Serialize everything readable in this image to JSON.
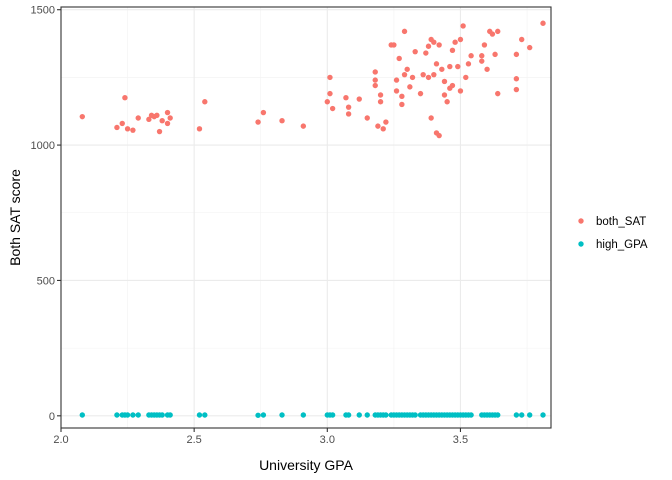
{
  "chart_data": {
    "type": "scatter",
    "title": "",
    "xlabel": "University GPA",
    "ylabel": "Both SAT score",
    "xlim": [
      2.0,
      3.84
    ],
    "ylim": [
      -45,
      1510
    ],
    "x_ticks": [
      2.0,
      2.5,
      3.0,
      3.5
    ],
    "x_tick_labels": [
      "2.0",
      "2.5",
      "3.0",
      "3.5"
    ],
    "y_ticks": [
      0,
      500,
      1000,
      1500
    ],
    "y_tick_labels": [
      "0",
      "500",
      "1000",
      "1500"
    ],
    "grid": true,
    "legend_position": "right",
    "series": [
      {
        "name": "both_SAT",
        "color": "#F8766D",
        "points": [
          [
            2.08,
            1105
          ],
          [
            2.21,
            1065
          ],
          [
            2.23,
            1080
          ],
          [
            2.24,
            1175
          ],
          [
            2.25,
            1060
          ],
          [
            2.27,
            1055
          ],
          [
            2.29,
            1100
          ],
          [
            2.33,
            1095
          ],
          [
            2.34,
            1110
          ],
          [
            2.35,
            1105
          ],
          [
            2.36,
            1110
          ],
          [
            2.37,
            1050
          ],
          [
            2.38,
            1090
          ],
          [
            2.4,
            1080
          ],
          [
            2.4,
            1120
          ],
          [
            2.41,
            1100
          ],
          [
            2.52,
            1060
          ],
          [
            2.54,
            1160
          ],
          [
            2.74,
            1085
          ],
          [
            2.76,
            1120
          ],
          [
            2.83,
            1090
          ],
          [
            2.91,
            1070
          ],
          [
            3.0,
            1160
          ],
          [
            3.01,
            1250
          ],
          [
            3.01,
            1190
          ],
          [
            3.02,
            1135
          ],
          [
            3.07,
            1175
          ],
          [
            3.08,
            1115
          ],
          [
            3.08,
            1140
          ],
          [
            3.12,
            1170
          ],
          [
            3.15,
            1100
          ],
          [
            3.18,
            1220
          ],
          [
            3.18,
            1270
          ],
          [
            3.18,
            1240
          ],
          [
            3.19,
            1070
          ],
          [
            3.2,
            1185
          ],
          [
            3.2,
            1160
          ],
          [
            3.21,
            1060
          ],
          [
            3.22,
            1085
          ],
          [
            3.24,
            1370
          ],
          [
            3.25,
            1370
          ],
          [
            3.26,
            1200
          ],
          [
            3.26,
            1240
          ],
          [
            3.27,
            1320
          ],
          [
            3.28,
            1150
          ],
          [
            3.28,
            1180
          ],
          [
            3.29,
            1420
          ],
          [
            3.29,
            1260
          ],
          [
            3.3,
            1280
          ],
          [
            3.31,
            1215
          ],
          [
            3.32,
            1250
          ],
          [
            3.33,
            1345
          ],
          [
            3.35,
            1190
          ],
          [
            3.36,
            1260
          ],
          [
            3.37,
            1340
          ],
          [
            3.38,
            1365
          ],
          [
            3.38,
            1250
          ],
          [
            3.39,
            1100
          ],
          [
            3.39,
            1390
          ],
          [
            3.4,
            1380
          ],
          [
            3.4,
            1260
          ],
          [
            3.41,
            1300
          ],
          [
            3.41,
            1045
          ],
          [
            3.42,
            1035
          ],
          [
            3.42,
            1370
          ],
          [
            3.43,
            1280
          ],
          [
            3.44,
            1185
          ],
          [
            3.44,
            1235
          ],
          [
            3.45,
            1160
          ],
          [
            3.46,
            1210
          ],
          [
            3.46,
            1290
          ],
          [
            3.47,
            1350
          ],
          [
            3.47,
            1220
          ],
          [
            3.48,
            1380
          ],
          [
            3.49,
            1290
          ],
          [
            3.5,
            1200
          ],
          [
            3.5,
            1390
          ],
          [
            3.51,
            1440
          ],
          [
            3.52,
            1250
          ],
          [
            3.53,
            1300
          ],
          [
            3.54,
            1330
          ],
          [
            3.58,
            1330
          ],
          [
            3.58,
            1310
          ],
          [
            3.59,
            1370
          ],
          [
            3.6,
            1280
          ],
          [
            3.61,
            1420
          ],
          [
            3.62,
            1410
          ],
          [
            3.63,
            1335
          ],
          [
            3.64,
            1190
          ],
          [
            3.64,
            1420
          ],
          [
            3.71,
            1335
          ],
          [
            3.71,
            1245
          ],
          [
            3.71,
            1205
          ],
          [
            3.73,
            1390
          ],
          [
            3.76,
            1360
          ],
          [
            3.81,
            1450
          ]
        ]
      },
      {
        "name": "high_GPA",
        "color": "#00BFC4",
        "points": [
          [
            2.08,
            3
          ],
          [
            2.21,
            3
          ],
          [
            2.23,
            3
          ],
          [
            2.24,
            3
          ],
          [
            2.25,
            3
          ],
          [
            2.27,
            3
          ],
          [
            2.29,
            3
          ],
          [
            2.33,
            3
          ],
          [
            2.34,
            3
          ],
          [
            2.35,
            3
          ],
          [
            2.36,
            3
          ],
          [
            2.37,
            3
          ],
          [
            2.38,
            3
          ],
          [
            2.4,
            3
          ],
          [
            2.41,
            3
          ],
          [
            2.52,
            3
          ],
          [
            2.54,
            3
          ],
          [
            2.74,
            2
          ],
          [
            2.76,
            3
          ],
          [
            2.83,
            3
          ],
          [
            2.91,
            3
          ],
          [
            3.0,
            3
          ],
          [
            3.01,
            3
          ],
          [
            3.02,
            3
          ],
          [
            3.07,
            3
          ],
          [
            3.08,
            3
          ],
          [
            3.12,
            3
          ],
          [
            3.15,
            3
          ],
          [
            3.18,
            3
          ],
          [
            3.19,
            3
          ],
          [
            3.2,
            3
          ],
          [
            3.21,
            3
          ],
          [
            3.22,
            3
          ],
          [
            3.24,
            3
          ],
          [
            3.25,
            3
          ],
          [
            3.26,
            3
          ],
          [
            3.27,
            3
          ],
          [
            3.28,
            3
          ],
          [
            3.29,
            3
          ],
          [
            3.3,
            3
          ],
          [
            3.31,
            3
          ],
          [
            3.32,
            3
          ],
          [
            3.33,
            3
          ],
          [
            3.35,
            3
          ],
          [
            3.36,
            3
          ],
          [
            3.37,
            3
          ],
          [
            3.38,
            3
          ],
          [
            3.39,
            3
          ],
          [
            3.4,
            3
          ],
          [
            3.41,
            3
          ],
          [
            3.42,
            3
          ],
          [
            3.43,
            3
          ],
          [
            3.44,
            3
          ],
          [
            3.45,
            3
          ],
          [
            3.46,
            3
          ],
          [
            3.47,
            3
          ],
          [
            3.48,
            3
          ],
          [
            3.49,
            3
          ],
          [
            3.5,
            3
          ],
          [
            3.51,
            3
          ],
          [
            3.52,
            3
          ],
          [
            3.53,
            3
          ],
          [
            3.54,
            3
          ],
          [
            3.58,
            3
          ],
          [
            3.59,
            3
          ],
          [
            3.6,
            3
          ],
          [
            3.61,
            3
          ],
          [
            3.62,
            3
          ],
          [
            3.63,
            3
          ],
          [
            3.64,
            3
          ],
          [
            3.71,
            3
          ],
          [
            3.73,
            3
          ],
          [
            3.76,
            3
          ],
          [
            3.81,
            3
          ]
        ]
      }
    ]
  }
}
